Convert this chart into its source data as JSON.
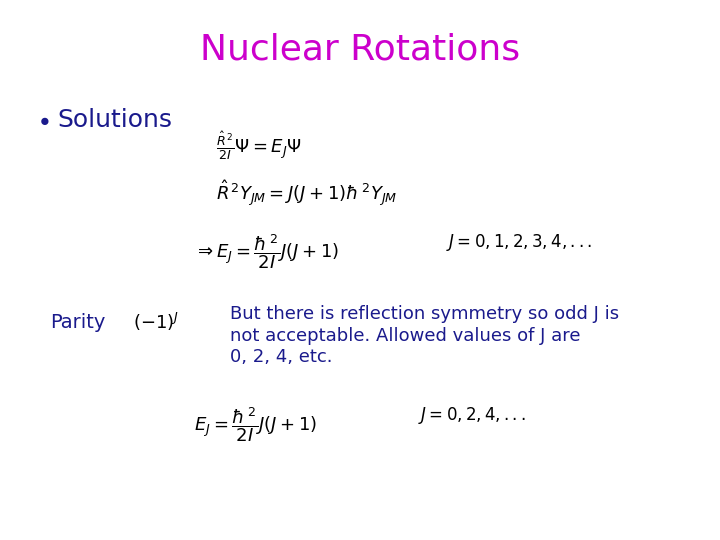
{
  "title": "Nuclear Rotations",
  "title_color": "#cc00cc",
  "title_fontsize": 26,
  "background_color": "#ffffff",
  "bullet_text": "Solutions",
  "bullet_color": "#1a1a8c",
  "bullet_fontsize": 18,
  "eq_color": "#000000",
  "text_color": "#1a1a8c",
  "eq_fontsize": 13,
  "parity_fontsize": 14,
  "body_text_fontsize": 14,
  "parity_label": "Parity",
  "parity_text_line1": "But there is reflection symmetry so odd J is",
  "parity_text_line2": "not acceptable. Allowed values of J are",
  "parity_text_line3": "0, 2, 4, etc."
}
